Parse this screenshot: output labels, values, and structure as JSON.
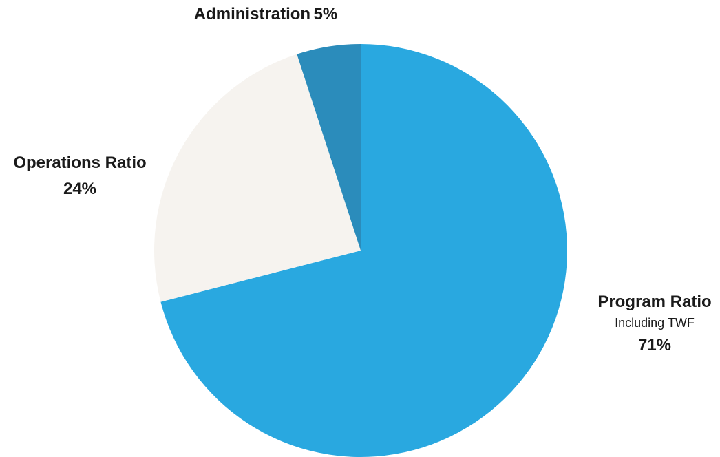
{
  "chart_data": {
    "type": "pie",
    "title": "",
    "slices": [
      {
        "key": "program",
        "label": "Program Ratio",
        "sublabel": "Including TWF",
        "value": 71,
        "value_label": "71%",
        "color": "#29a8e0"
      },
      {
        "key": "operations",
        "label": "Operations Ratio",
        "value": 24,
        "value_label": "24%",
        "color": "#f6f3ef"
      },
      {
        "key": "admin",
        "label": "Administration",
        "value": 5,
        "value_label": "5%",
        "color": "#2b8cbb"
      }
    ],
    "start": "top, clockwise",
    "legend": "none"
  }
}
